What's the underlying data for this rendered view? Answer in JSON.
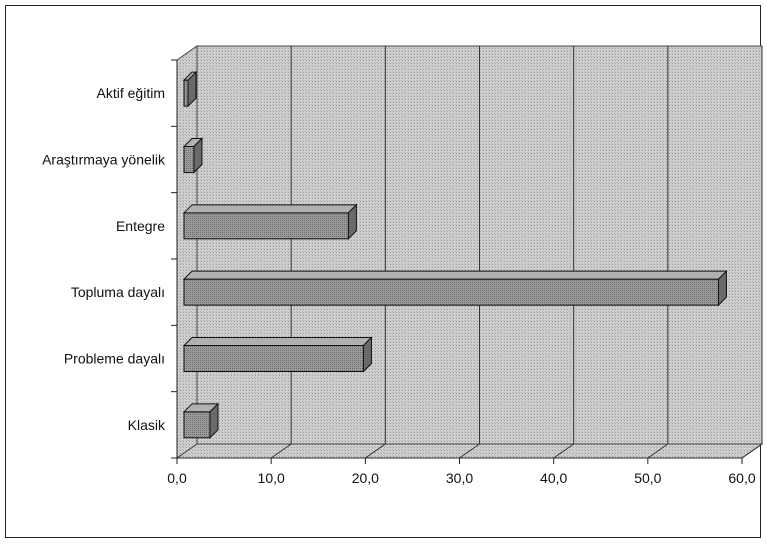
{
  "chart_data": {
    "type": "bar",
    "orientation": "horizontal",
    "style": "3d",
    "title": "",
    "xlabel": "",
    "ylabel": "",
    "categories": [
      "Klasik",
      "Probleme dayalı",
      "Topluma dayalı",
      "Entegre",
      "Araştırmaya yönelik",
      "Aktif eğitim"
    ],
    "values": [
      3.5,
      19.8,
      57.5,
      18.2,
      1.8,
      0.7
    ],
    "xlim": [
      0,
      60
    ],
    "x_ticks": [
      0,
      10,
      20,
      30,
      40,
      50,
      60
    ],
    "x_tick_labels": [
      "0,0",
      "10,0",
      "20,0",
      "30,0",
      "40,0",
      "50,0",
      "60,0"
    ],
    "grid": true,
    "legend": "none",
    "colors": {
      "bar_front": "#8a8a8a",
      "bar_top": "#b0b0b0",
      "bar_side": "#6a6a6a",
      "wall": "#c9c9c9",
      "floor": "#d6d6d6",
      "gridline": "#333333"
    }
  }
}
